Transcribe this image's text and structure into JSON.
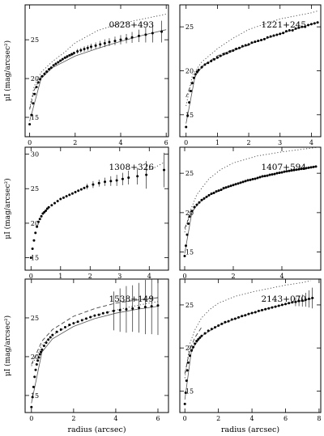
{
  "chart_data": [
    {
      "type": "scatter",
      "title": "0828+493",
      "xlabel": "",
      "ylabel": "μI (mag/arcsec²)",
      "xlim": [
        -0.2,
        6.1
      ],
      "ylim": [
        29.5,
        12.5
      ],
      "xticks": [
        0,
        2,
        4,
        6
      ],
      "yticks": [
        15,
        20,
        25
      ],
      "error_bar_from_x": 2.0,
      "x": [
        0.0,
        0.08,
        0.15,
        0.22,
        0.3,
        0.38,
        0.46,
        0.55,
        0.65,
        0.75,
        0.85,
        0.95,
        1.05,
        1.15,
        1.25,
        1.35,
        1.45,
        1.55,
        1.65,
        1.75,
        1.85,
        1.95,
        2.1,
        2.25,
        2.4,
        2.55,
        2.7,
        2.9,
        3.1,
        3.3,
        3.5,
        3.75,
        4.0,
        4.25,
        4.5,
        4.8,
        5.1,
        5.4,
        5.8
      ],
      "y": [
        14.1,
        15.3,
        16.8,
        18.0,
        18.9,
        19.5,
        19.9,
        20.3,
        20.6,
        20.9,
        21.2,
        21.4,
        21.7,
        21.9,
        22.1,
        22.3,
        22.5,
        22.7,
        22.85,
        23.0,
        23.15,
        23.3,
        23.5,
        23.65,
        23.8,
        23.95,
        24.1,
        24.25,
        24.4,
        24.55,
        24.7,
        24.85,
        25.0,
        25.15,
        25.3,
        25.5,
        25.65,
        25.85,
        26.05
      ],
      "yerr": [
        0,
        0,
        0,
        0,
        0,
        0,
        0,
        0,
        0,
        0,
        0,
        0,
        0,
        0,
        0,
        0,
        0,
        0,
        0,
        0,
        0,
        0,
        0.3,
        0.3,
        0.35,
        0.35,
        0.4,
        0.4,
        0.45,
        0.5,
        0.5,
        0.55,
        0.6,
        0.6,
        0.7,
        0.8,
        1.0,
        1.2,
        1.4
      ],
      "model": {
        "x": [
          0,
          0.5,
          1,
          2,
          3,
          4,
          5,
          6
        ],
        "y": [
          14.5,
          20.0,
          21.4,
          22.9,
          23.9,
          24.8,
          25.6,
          26.3
        ]
      },
      "psf_dotted": {
        "x": [
          0,
          0.2,
          0.5,
          1.0,
          1.5,
          2,
          3,
          4,
          5,
          6
        ],
        "y": [
          16.2,
          19.0,
          20.8,
          22.2,
          23.3,
          24.6,
          26.2,
          27.1,
          27.7,
          28.3
        ]
      },
      "psf_dashed": {
        "x": [
          0,
          0.2,
          0.5,
          1.0,
          1.5,
          2
        ],
        "y": [
          16.0,
          18.5,
          20.3,
          21.6,
          22.5,
          23.2
        ]
      }
    },
    {
      "type": "scatter",
      "title": "1221+245",
      "xlabel": "",
      "ylabel": "",
      "xlim": [
        -0.2,
        4.3
      ],
      "ylim": [
        27.5,
        12.5
      ],
      "xticks": [
        0,
        1,
        2,
        3,
        4
      ],
      "yticks": [
        15,
        20,
        25
      ],
      "error_bar_from_x": 99,
      "x": [
        0.0,
        0.05,
        0.1,
        0.15,
        0.2,
        0.25,
        0.3,
        0.35,
        0.4,
        0.5,
        0.6,
        0.7,
        0.8,
        0.9,
        1.0,
        1.1,
        1.2,
        1.3,
        1.4,
        1.5,
        1.6,
        1.7,
        1.8,
        1.9,
        2.0,
        2.1,
        2.2,
        2.3,
        2.4,
        2.5,
        2.6,
        2.7,
        2.8,
        2.9,
        3.0,
        3.1,
        3.2,
        3.3,
        3.4,
        3.5,
        3.6,
        3.7,
        3.8,
        3.9,
        4.0,
        4.1,
        4.2
      ],
      "y": [
        13.6,
        14.9,
        16.4,
        17.7,
        18.6,
        19.2,
        19.6,
        19.9,
        20.1,
        20.4,
        20.7,
        20.9,
        21.1,
        21.3,
        21.5,
        21.7,
        21.9,
        22.0,
        22.2,
        22.3,
        22.5,
        22.6,
        22.8,
        22.9,
        23.0,
        23.2,
        23.3,
        23.4,
        23.5,
        23.6,
        23.8,
        23.9,
        24.0,
        24.1,
        24.2,
        24.3,
        24.5,
        24.6,
        24.6,
        24.8,
        24.9,
        25.0,
        25.0,
        25.2,
        25.3,
        25.4,
        25.5
      ],
      "yerr": [],
      "model": {
        "x": [
          0,
          0.3,
          0.6,
          1,
          2,
          3,
          4,
          4.2
        ],
        "y": [
          14,
          19.6,
          20.7,
          21.5,
          23.0,
          24.2,
          25.3,
          25.5
        ]
      },
      "psf_dotted": {
        "x": [
          0,
          0.2,
          0.5,
          1.0,
          1.5,
          2,
          3,
          4,
          4.2
        ],
        "y": [
          16,
          19.5,
          21.0,
          22.5,
          23.7,
          24.7,
          25.9,
          26.6,
          26.8
        ]
      },
      "psf_dashed": {
        "x": [
          0,
          0.2,
          0.5,
          1.0,
          1.5,
          2
        ],
        "y": [
          17,
          18.8,
          20.5,
          21.7,
          22.4,
          22.9
        ]
      }
    },
    {
      "type": "scatter",
      "title": "1308+326",
      "xlabel": "",
      "ylabel": "μI (mag/arcsec²)",
      "xlim": [
        -0.2,
        4.65
      ],
      "ylim": [
        31.0,
        13.2
      ],
      "xticks": [
        0,
        1,
        2,
        3,
        4
      ],
      "yticks": [
        15,
        20,
        25,
        30
      ],
      "error_bar_from_x": 1.9,
      "x": [
        0.0,
        0.05,
        0.1,
        0.15,
        0.2,
        0.25,
        0.3,
        0.35,
        0.4,
        0.45,
        0.5,
        0.55,
        0.6,
        0.7,
        0.8,
        0.9,
        1.0,
        1.1,
        1.2,
        1.3,
        1.4,
        1.5,
        1.6,
        1.7,
        1.8,
        1.9,
        2.1,
        2.3,
        2.5,
        2.7,
        2.9,
        3.1,
        3.3,
        3.6,
        3.9,
        4.5
      ],
      "y": [
        15.0,
        16.3,
        17.5,
        18.6,
        19.5,
        20.2,
        20.6,
        21.0,
        21.4,
        21.6,
        21.8,
        22.1,
        22.3,
        22.6,
        22.9,
        23.2,
        23.5,
        23.7,
        23.9,
        24.1,
        24.3,
        24.5,
        24.7,
        24.9,
        25.1,
        25.3,
        25.6,
        25.8,
        26.0,
        26.1,
        26.2,
        26.4,
        26.6,
        26.8,
        27.0,
        27.7
      ],
      "yerr": [
        0,
        0,
        0,
        0,
        0,
        0,
        0,
        0,
        0,
        0,
        0,
        0,
        0,
        0,
        0,
        0,
        0,
        0,
        0,
        0,
        0,
        0,
        0,
        0,
        0,
        0.4,
        0.5,
        0.5,
        0.6,
        0.7,
        0.8,
        0.9,
        1.0,
        1.2,
        2.0,
        2.5
      ],
      "model": {
        "x": [],
        "y": []
      },
      "psf_dotted": {
        "x": [
          3.9,
          4.2,
          4.5
        ],
        "y": [
          27.6,
          28.1,
          28.8
        ]
      },
      "psf_dashed": {
        "x": [],
        "y": []
      }
    },
    {
      "type": "scatter",
      "title": "1407+594",
      "xlabel": "",
      "ylabel": "",
      "xlim": [
        -0.2,
        5.6
      ],
      "ylim": [
        28.3,
        12.7
      ],
      "xticks": [
        0,
        2,
        4
      ],
      "yticks": [
        15,
        20,
        25
      ],
      "error_bar_from_x": 99,
      "x": [
        0.0,
        0.05,
        0.1,
        0.15,
        0.2,
        0.3,
        0.4,
        0.5,
        0.6,
        0.7,
        0.8,
        0.9,
        1.0,
        1.1,
        1.2,
        1.3,
        1.4,
        1.5,
        1.6,
        1.7,
        1.8,
        1.9,
        2.0,
        2.1,
        2.2,
        2.3,
        2.4,
        2.5,
        2.6,
        2.7,
        2.8,
        2.9,
        3.0,
        3.1,
        3.2,
        3.3,
        3.4,
        3.5,
        3.6,
        3.7,
        3.8,
        3.9,
        4.0,
        4.1,
        4.2,
        4.3,
        4.4,
        4.5,
        4.6,
        4.7,
        4.8,
        4.9,
        5.0,
        5.1,
        5.2,
        5.3,
        5.4
      ],
      "y": [
        14.5,
        15.8,
        17.2,
        18.6,
        19.5,
        20.2,
        20.7,
        21.0,
        21.3,
        21.6,
        21.8,
        22.0,
        22.2,
        22.4,
        22.5,
        22.7,
        22.8,
        22.9,
        23.1,
        23.2,
        23.3,
        23.4,
        23.5,
        23.6,
        23.7,
        23.8,
        23.9,
        24.0,
        24.1,
        24.15,
        24.25,
        24.3,
        24.4,
        24.5,
        24.6,
        24.65,
        24.7,
        24.8,
        24.85,
        24.9,
        25.0,
        25.05,
        25.1,
        25.2,
        25.25,
        25.3,
        25.35,
        25.4,
        25.45,
        25.5,
        25.55,
        25.6,
        25.65,
        25.7,
        25.75,
        25.8,
        25.85
      ],
      "yerr": [],
      "model": {
        "x": [
          0,
          0.3,
          0.6,
          1,
          2,
          3,
          4,
          5,
          5.4
        ],
        "y": [
          14.8,
          20.1,
          21.3,
          22.2,
          23.5,
          24.4,
          25.1,
          25.6,
          25.8
        ]
      },
      "psf_dotted": {
        "x": [
          0,
          0.2,
          0.5,
          1,
          1.5,
          2,
          3,
          4,
          5,
          5.5
        ],
        "y": [
          17.5,
          20,
          22.3,
          24.3,
          25.5,
          26.3,
          27.2,
          27.7,
          28.1,
          28.3
        ]
      },
      "psf_dashed": {
        "x": [
          0,
          0.2,
          0.5,
          1
        ],
        "y": [
          18.0,
          19.5,
          21.0,
          22.2
        ]
      }
    },
    {
      "type": "scatter",
      "title": "1538+149",
      "xlabel": "radius (arcsec)",
      "ylabel": "μI (mag/arcsec²)",
      "xlim": [
        -0.3,
        6.5
      ],
      "ylim": [
        30.0,
        12.8
      ],
      "xticks": [
        0,
        2,
        4,
        6
      ],
      "yticks": [
        15,
        20,
        25
      ],
      "error_bar_from_x": 3.9,
      "x": [
        0.0,
        0.05,
        0.1,
        0.15,
        0.2,
        0.25,
        0.3,
        0.35,
        0.4,
        0.45,
        0.5,
        0.6,
        0.7,
        0.8,
        0.9,
        1.0,
        1.2,
        1.4,
        1.6,
        1.8,
        2.0,
        2.2,
        2.4,
        2.6,
        2.8,
        3.0,
        3.2,
        3.4,
        3.6,
        3.9,
        4.2,
        4.5,
        4.8,
        5.1,
        5.4,
        5.7,
        6.0
      ],
      "y": [
        13.5,
        14.8,
        16.1,
        17.4,
        18.3,
        19.0,
        19.5,
        19.9,
        20.3,
        20.6,
        20.9,
        21.4,
        21.8,
        22.2,
        22.5,
        22.8,
        23.2,
        23.5,
        23.8,
        24.1,
        24.3,
        24.5,
        24.7,
        24.9,
        25.1,
        25.3,
        25.4,
        25.6,
        25.7,
        25.9,
        26.0,
        26.1,
        26.2,
        26.3,
        26.4,
        26.5,
        26.6
      ],
      "yerr": [
        0,
        0,
        0,
        0,
        0,
        0,
        0,
        0,
        0,
        0,
        0,
        0,
        0,
        0,
        0,
        0,
        0,
        0,
        0,
        0,
        0,
        0,
        0,
        0,
        0,
        0,
        0,
        0,
        0,
        2.5,
        2.8,
        3.0,
        3.0,
        3.2,
        3.5,
        3.6,
        3.8
      ],
      "model": {
        "x": [
          0,
          0.5,
          1,
          2,
          3,
          4,
          5,
          6
        ],
        "y": [
          14,
          20.6,
          22.3,
          23.9,
          24.9,
          25.6,
          26.1,
          26.5
        ]
      },
      "psf_dotted": {
        "x": [
          0,
          0.5,
          1,
          2,
          3,
          4,
          5,
          6
        ],
        "y": [
          18.8,
          21.5,
          22.8,
          24.3,
          25.3,
          26.0,
          26.6,
          27.1
        ]
      },
      "psf_dashed": {
        "x": [
          0,
          0.5,
          1,
          2,
          3,
          4,
          5,
          6
        ],
        "y": [
          19.0,
          22.0,
          23.5,
          25.2,
          26.2,
          26.9,
          27.3,
          27.6
        ]
      }
    },
    {
      "type": "scatter",
      "title": "2143+070",
      "xlabel": "radius (arcsec)",
      "ylabel": "",
      "xlim": [
        -0.3,
        8.1
      ],
      "ylim": [
        28.0,
        12.5
      ],
      "xticks": [
        0,
        2,
        4,
        6,
        8
      ],
      "yticks": [
        15,
        20,
        25
      ],
      "error_bar_from_x": 6.5,
      "x": [
        0.0,
        0.05,
        0.1,
        0.15,
        0.2,
        0.3,
        0.4,
        0.5,
        0.6,
        0.7,
        0.8,
        0.9,
        1.0,
        1.2,
        1.4,
        1.6,
        1.8,
        2.0,
        2.2,
        2.4,
        2.6,
        2.8,
        3.0,
        3.2,
        3.4,
        3.6,
        3.8,
        4.0,
        4.2,
        4.4,
        4.6,
        4.8,
        5.0,
        5.2,
        5.4,
        5.6,
        5.8,
        6.0,
        6.2,
        6.4,
        6.6,
        6.8,
        7.0,
        7.2,
        7.4,
        7.6
      ],
      "y": [
        13.5,
        14.8,
        16.2,
        17.4,
        18.3,
        19.1,
        19.7,
        20.1,
        20.5,
        20.8,
        21.0,
        21.2,
        21.4,
        21.7,
        22.0,
        22.2,
        22.4,
        22.6,
        22.8,
        23.0,
        23.1,
        23.3,
        23.4,
        23.55,
        23.7,
        23.8,
        23.95,
        24.05,
        24.15,
        24.3,
        24.4,
        24.5,
        24.6,
        24.7,
        24.8,
        24.9,
        25.0,
        25.1,
        25.2,
        25.3,
        25.35,
        25.45,
        25.5,
        25.6,
        25.7,
        25.8
      ],
      "yerr": [
        0,
        0,
        0,
        0,
        0,
        0,
        0,
        0,
        0,
        0,
        0,
        0,
        0,
        0,
        0,
        0,
        0,
        0,
        0,
        0,
        0,
        0,
        0,
        0,
        0,
        0,
        0,
        0,
        0,
        0,
        0,
        0,
        0,
        0,
        0,
        0,
        0,
        0,
        0,
        0,
        0.5,
        0.6,
        0.7,
        0.8,
        1.0,
        1.2
      ],
      "model": {
        "x": [
          0,
          0.4,
          1,
          2,
          3,
          4,
          5,
          6,
          7,
          7.7
        ],
        "y": [
          14,
          19.8,
          21.4,
          22.6,
          23.4,
          24.05,
          24.6,
          25.1,
          25.5,
          25.8
        ]
      },
      "psf_dotted": {
        "x": [
          0,
          0.3,
          0.6,
          1,
          1.5,
          2,
          3,
          4,
          5,
          6,
          7,
          7.5
        ],
        "y": [
          16.5,
          20.5,
          22.1,
          23.5,
          24.5,
          25.2,
          26.0,
          26.5,
          26.9,
          27.3,
          27.6,
          27.8
        ]
      },
      "psf_dashed": {
        "x": [
          0,
          0.3,
          0.6,
          1
        ],
        "y": [
          17.0,
          19.8,
          21.2,
          22.4
        ]
      }
    }
  ]
}
